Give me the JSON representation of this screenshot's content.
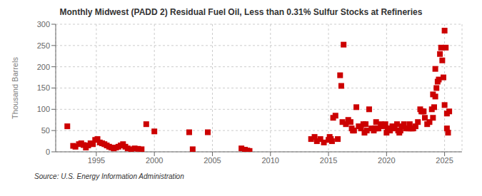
{
  "chart_data": {
    "type": "scatter",
    "title": "Monthly Midwest (PADD 2) Residual Fuel Oil, Less than 0.31% Sulfur Stocks at Refineries",
    "y_label": "Thousand Barrels",
    "annotation": "Source: U.S. Energy Information Administration",
    "color": "#cc0000",
    "marker": "square",
    "grid": true,
    "xlim": [
      1991.5,
      2026.5
    ],
    "ylim": [
      0,
      300
    ],
    "xticks": [
      1995,
      2000,
      2005,
      2010,
      2015,
      2020,
      2025
    ],
    "yticks": [
      0,
      50,
      100,
      150,
      200,
      250,
      300
    ],
    "x": [
      1992.5,
      1993.0,
      1993.2,
      1993.5,
      1993.7,
      1993.9,
      1994.1,
      1994.3,
      1994.5,
      1994.7,
      1994.9,
      1995.1,
      1995.3,
      1995.5,
      1995.7,
      1995.9,
      1996.1,
      1996.3,
      1996.5,
      1996.7,
      1996.9,
      1997.1,
      1997.3,
      1997.5,
      1997.7,
      1998.0,
      1998.3,
      1998.6,
      1998.9,
      1999.3,
      2000.0,
      2003.0,
      2003.3,
      2004.6,
      2007.5,
      2007.8,
      2008.0,
      2008.2,
      2013.5,
      2013.8,
      2014.0,
      2014.3,
      2014.6,
      2015.0,
      2015.2,
      2015.4,
      2015.6,
      2015.8,
      2016.0,
      2016.1,
      2016.3,
      2016.5,
      2016.7,
      2016.9,
      2017.0,
      2017.2,
      2017.4,
      2017.6,
      2017.8,
      2018.0,
      2018.1,
      2018.3,
      2018.5,
      2018.7,
      2018.9,
      2019.0,
      2019.1,
      2019.3,
      2019.5,
      2019.7,
      2019.9,
      2020.0,
      2020.1,
      2020.3,
      2020.5,
      2020.7,
      2020.9,
      2021.0,
      2021.1,
      2021.3,
      2021.5,
      2021.7,
      2021.9,
      2022.0,
      2022.1,
      2022.3,
      2022.5,
      2022.7,
      2022.9,
      2023.0,
      2023.1,
      2023.3,
      2023.5,
      2023.7,
      2023.9,
      2024.0,
      2024.1,
      2024.2,
      2024.3,
      2024.4,
      2024.5,
      2024.6,
      2024.7,
      2024.8,
      2024.9,
      2025.0,
      2025.0,
      2025.1,
      2025.2,
      2025.2,
      2025.3,
      2025.4,
      2016.2,
      2017.1,
      2018.2,
      2019.2,
      2020.2,
      2021.2,
      2022.2,
      2023.2,
      2024.0,
      2024.2,
      2015.1,
      2015.3
    ],
    "values": [
      60,
      14,
      12,
      18,
      20,
      16,
      10,
      15,
      20,
      18,
      28,
      30,
      22,
      20,
      18,
      15,
      12,
      10,
      8,
      10,
      12,
      15,
      18,
      12,
      8,
      6,
      8,
      7,
      6,
      65,
      48,
      46,
      6,
      46,
      8,
      5,
      3,
      2,
      30,
      35,
      25,
      30,
      22,
      28,
      30,
      80,
      85,
      30,
      180,
      155,
      252,
      65,
      75,
      70,
      55,
      50,
      105,
      60,
      55,
      65,
      45,
      50,
      100,
      55,
      50,
      55,
      70,
      55,
      65,
      60,
      65,
      45,
      55,
      50,
      60,
      55,
      65,
      50,
      45,
      60,
      65,
      55,
      55,
      65,
      55,
      55,
      60,
      70,
      100,
      95,
      95,
      80,
      65,
      70,
      100,
      80,
      105,
      130,
      150,
      165,
      170,
      230,
      245,
      215,
      175,
      110,
      285,
      245,
      55,
      90,
      45,
      95,
      70,
      50,
      65,
      55,
      55,
      50,
      55,
      95,
      135,
      195,
      35,
      25
    ]
  }
}
